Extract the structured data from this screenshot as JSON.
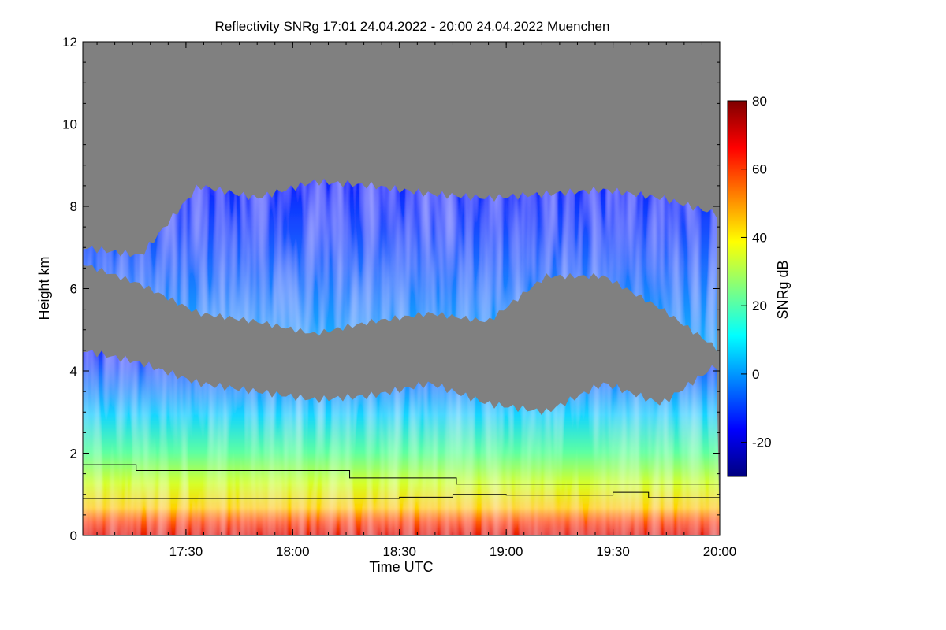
{
  "chart_data": {
    "type": "heatmap",
    "title": "Reflectivity SNRg   17:01 24.04.2022 - 20:00 24.04.2022 Muenchen",
    "xlabel": "Time UTC",
    "ylabel": "Height km",
    "x_range": [
      "17:01",
      "20:00"
    ],
    "x_ticks": [
      "17:30",
      "18:00",
      "18:30",
      "19:00",
      "19:30",
      "20:00"
    ],
    "y_range": [
      0,
      12
    ],
    "y_ticks": [
      0,
      2,
      4,
      6,
      8,
      10,
      12
    ],
    "colorbar": {
      "label": "SNRg dB",
      "range": [
        -30,
        80
      ],
      "ticks": [
        -20,
        0,
        20,
        40,
        60,
        80
      ],
      "colormap": "jet"
    },
    "no_data_color": "#808080",
    "upper_cloud_layer": {
      "bottom_km": [
        6.6,
        6.1,
        5.4,
        5.2,
        4.9,
        5.2,
        5.4,
        5.2,
        6.3,
        6.3,
        5.5,
        4.5
      ],
      "top_km": [
        7.0,
        6.8,
        8.5,
        8.2,
        8.6,
        8.5,
        8.3,
        8.2,
        8.3,
        8.4,
        8.2,
        7.8
      ]
    },
    "lower_cloud_layer": {
      "top_km": [
        4.5,
        4.2,
        3.7,
        3.5,
        3.3,
        3.4,
        3.7,
        3.2,
        3.0,
        3.7,
        3.2,
        4.2
      ]
    },
    "boundary_lines": [
      {
        "x": [
          "17:01",
          "17:16",
          "18:16",
          "18:46",
          "20:00"
        ],
        "y_km": [
          1.72,
          1.58,
          1.4,
          1.25,
          1.25
        ]
      },
      {
        "x": [
          "17:01",
          "18:30",
          "18:45",
          "19:00",
          "19:30",
          "19:40",
          "20:00"
        ],
        "y_km": [
          0.9,
          0.93,
          1.0,
          0.98,
          1.05,
          0.92,
          0.95
        ]
      }
    ]
  }
}
